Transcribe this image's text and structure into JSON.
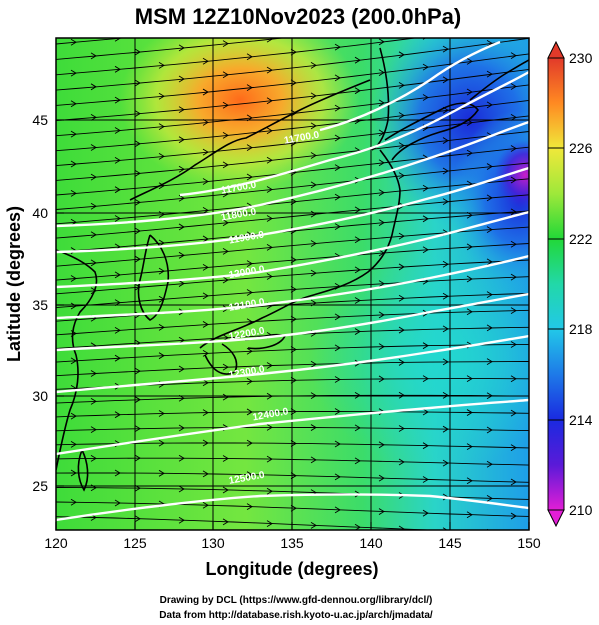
{
  "title": "MSM 12Z10Nov2023 (200.0hPa)",
  "xlabel": "Longitude (degrees)",
  "ylabel": "Latitude  (degrees)",
  "x_ticks": [
    "120",
    "125",
    "130",
    "135",
    "140",
    "145",
    "150"
  ],
  "y_ticks": [
    "25",
    "30",
    "35",
    "40",
    "45"
  ],
  "colorbar": {
    "ticks": [
      "230",
      "226",
      "222",
      "218",
      "214",
      "210"
    ],
    "range": [
      210,
      230
    ]
  },
  "contour_labels": [
    {
      "text": "11700.0",
      "lon": 134.5,
      "lat": 42.7
    },
    {
      "text": "11700.0",
      "lon": 130.5,
      "lat": 40.1
    },
    {
      "text": "11800.0",
      "lon": 130.5,
      "lat": 38.7
    },
    {
      "text": "11900.0",
      "lon": 131.0,
      "lat": 37.5
    },
    {
      "text": "12000.0",
      "lon": 131.0,
      "lat": 35.7
    },
    {
      "text": "12100.0",
      "lon": 131.0,
      "lat": 34.0
    },
    {
      "text": "12200.0",
      "lon": 131.0,
      "lat": 32.5
    },
    {
      "text": "12300.0",
      "lon": 131.0,
      "lat": 30.5
    },
    {
      "text": "12400.0",
      "lon": 132.5,
      "lat": 28.3
    },
    {
      "text": "12500.0",
      "lon": 131.0,
      "lat": 25.0
    }
  ],
  "credits": {
    "line1": "Drawing by DCL (https://www.gfd-dennou.org/library/dcl/)",
    "line2": "Data from http://database.rish.kyoto-u.ac.jp/arch/jmadata/"
  }
}
